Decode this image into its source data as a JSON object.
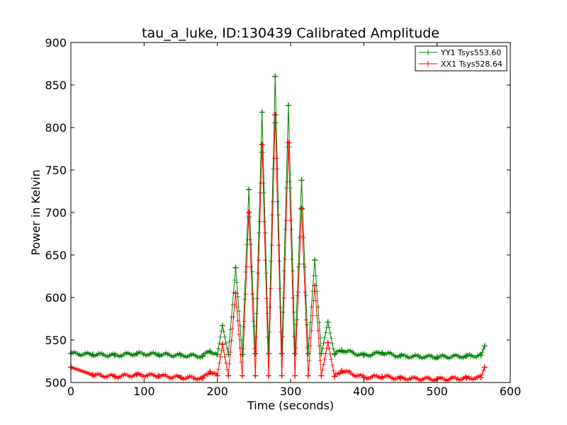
{
  "chart_data": {
    "type": "line",
    "title": "tau_a_luke, ID:130439 Calibrated Amplitude",
    "xlabel": "Time (seconds)",
    "ylabel": "Power in Kelvin",
    "xlim": [
      0,
      600
    ],
    "ylim": [
      500,
      900
    ],
    "xticks": [
      0,
      100,
      200,
      300,
      400,
      500,
      600
    ],
    "yticks": [
      500,
      550,
      600,
      650,
      700,
      750,
      800,
      850,
      900
    ],
    "grid": false,
    "legend_position": "top-right",
    "marker": "+",
    "series": [
      {
        "name": "YY1 Tsys553.60",
        "color": "#008000",
        "baseline": 533,
        "x": [
          0,
          30,
          60,
          90,
          120,
          150,
          180,
          190,
          200,
          207,
          215,
          225,
          234,
          243,
          252,
          261,
          270,
          279,
          288,
          297,
          306,
          315,
          324,
          333,
          342,
          351,
          360,
          370,
          400,
          425,
          450,
          500,
          540,
          560,
          565
        ],
        "y": [
          534,
          533,
          532,
          534,
          533,
          532,
          531,
          537,
          533,
          567,
          533,
          635,
          533,
          727,
          534,
          818,
          534,
          860,
          534,
          826,
          534,
          738,
          534,
          644,
          534,
          571,
          533,
          538,
          532,
          535,
          531,
          530,
          531,
          532,
          543
        ]
      },
      {
        "name": "XX1 Tsys528.64",
        "color": "#ff0000",
        "baseline": 508,
        "x": [
          0,
          30,
          60,
          90,
          120,
          150,
          180,
          190,
          200,
          207,
          215,
          225,
          234,
          243,
          252,
          261,
          270,
          279,
          288,
          297,
          306,
          315,
          324,
          333,
          342,
          351,
          360,
          370,
          400,
          425,
          450,
          500,
          540,
          560,
          565
        ],
        "y": [
          518,
          509,
          507,
          509,
          508,
          506,
          505,
          513,
          508,
          545,
          508,
          605,
          508,
          700,
          508,
          780,
          508,
          815,
          508,
          782,
          508,
          705,
          508,
          614,
          508,
          547,
          507,
          514,
          506,
          507,
          505,
          504,
          505,
          506,
          518
        ]
      }
    ]
  }
}
